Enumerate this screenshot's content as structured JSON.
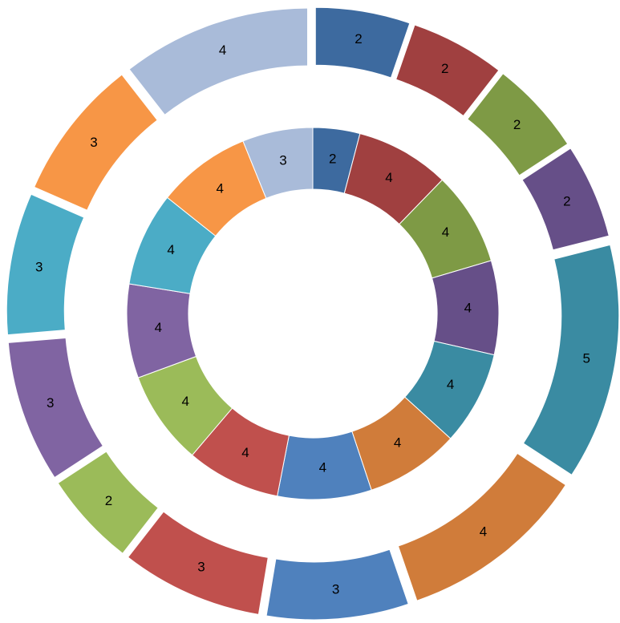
{
  "chart_data": {
    "type": "doughnut",
    "series": [
      {
        "values": [
          2,
          4,
          4,
          4,
          4,
          4,
          4,
          4,
          4,
          4,
          4,
          4,
          3
        ],
        "colors": [
          "#3d6a9f",
          "#a04040",
          "#7e9a45",
          "#664f88",
          "#3a8ba2",
          "#d07c3a",
          "#4f81bd",
          "#c0504d",
          "#9bbb59",
          "#8064a2",
          "#4bacc6",
          "#f79646",
          "#a9bbd9"
        ]
      },
      {
        "values": [
          2,
          2,
          2,
          2,
          5,
          4,
          3,
          3,
          2,
          3,
          3,
          3,
          4
        ],
        "colors": [
          "#3d6a9f",
          "#a04040",
          "#7e9a45",
          "#664f88",
          "#3a8ba2",
          "#d07c3a",
          "#4f81bd",
          "#c0504d",
          "#9bbb59",
          "#8064a2",
          "#4bacc6",
          "#f79646",
          "#a9bbd9"
        ]
      }
    ]
  }
}
